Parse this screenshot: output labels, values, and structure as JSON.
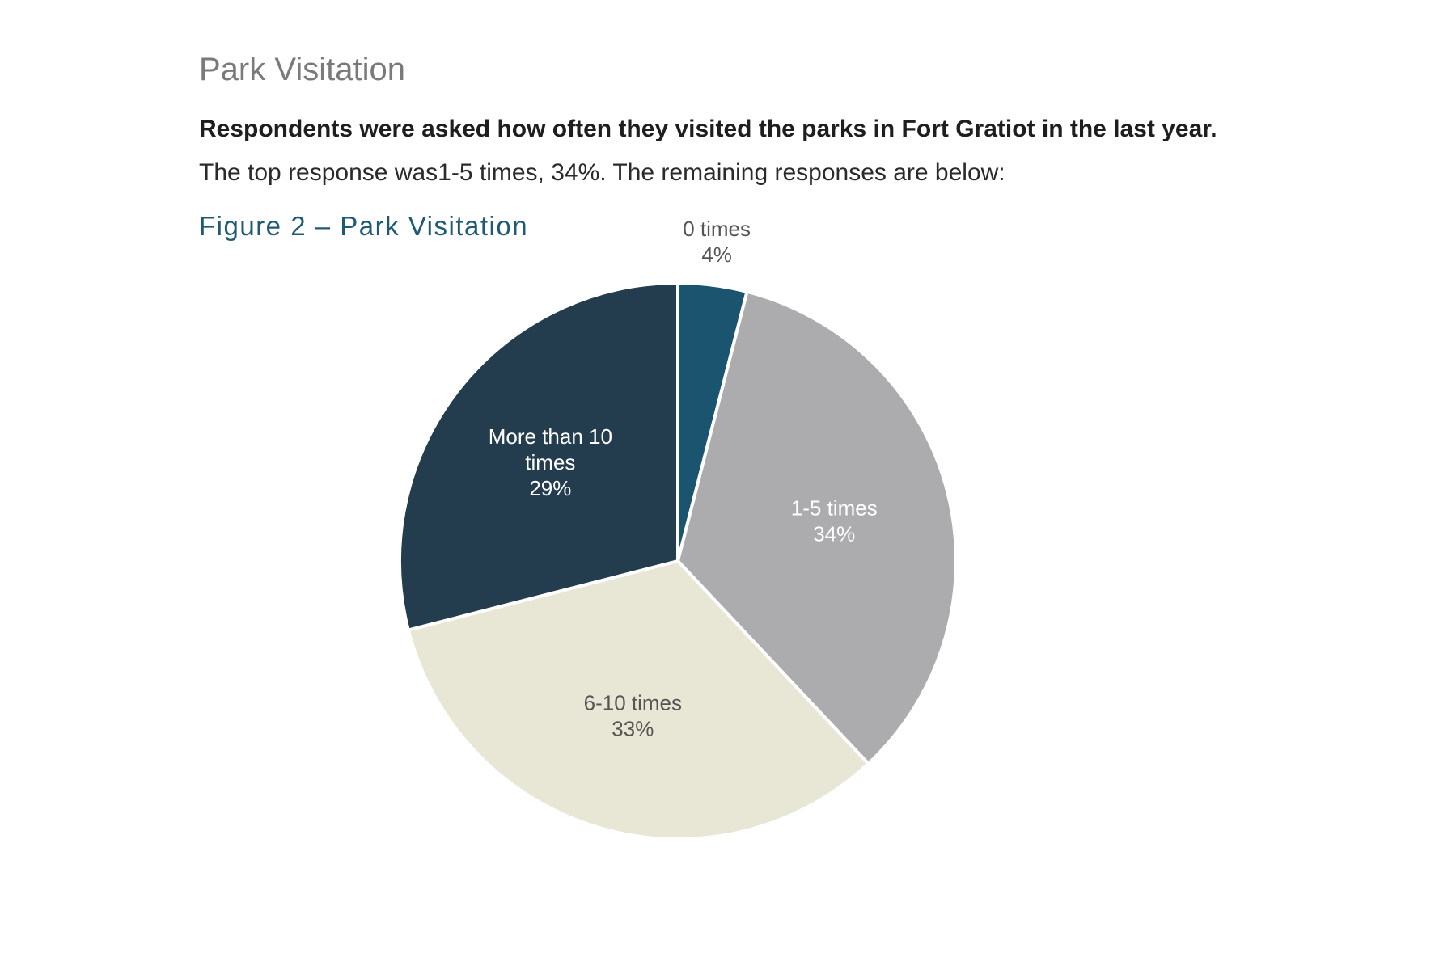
{
  "page": {
    "section_heading": "Park Visitation",
    "question": "Respondents were asked how often they visited the parks in Fort Gratiot in the last year.",
    "summary": "The top response was1-5 times, 34%. The remaining responses are below:",
    "figure_title": "Figure 2 – Park Visitation"
  },
  "chart_data": {
    "type": "pie",
    "title": "",
    "start_angle_deg": 0,
    "direction": "clockwise",
    "slices": [
      {
        "label": "0 times",
        "value": 4,
        "value_label": "4%",
        "color": "#1b546e",
        "label_color": "#555555",
        "label_position": "outside"
      },
      {
        "label": "1-5 times",
        "value": 34,
        "value_label": "34%",
        "color": "#acabae",
        "label_color": "#ffffff",
        "label_position": "inside"
      },
      {
        "label": "6-10 times",
        "value": 33,
        "value_label": "33%",
        "color": "#e8e7d5",
        "label_color": "#555555",
        "label_position": "inside"
      },
      {
        "label": "More than 10 times",
        "value": 29,
        "value_label": "29%",
        "color": "#233c4e",
        "label_color": "#ffffff",
        "label_position": "inside"
      }
    ]
  }
}
